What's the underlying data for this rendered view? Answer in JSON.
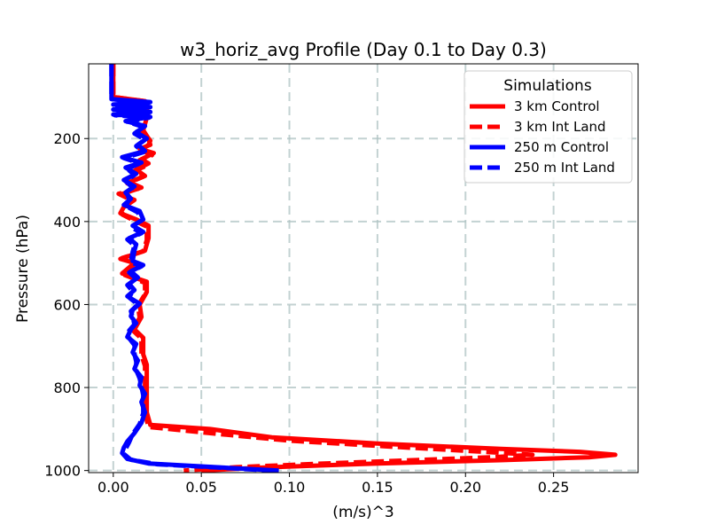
{
  "chart_data": {
    "type": "line",
    "title": "w3_horiz_avg Profile (Day 0.1 to Day 0.3)",
    "xlabel": "(m/s)^3",
    "ylabel": "Pressure (hPa)",
    "xlim": [
      -0.014,
      0.298
    ],
    "ylim": [
      1005,
      20
    ],
    "y_inverted": true,
    "xticks": [
      0.0,
      0.05,
      0.1,
      0.15,
      0.2,
      0.25
    ],
    "xtick_labels": [
      "0.00",
      "0.05",
      "0.10",
      "0.15",
      "0.20",
      "0.25"
    ],
    "yticks": [
      200,
      400,
      600,
      800,
      1000
    ],
    "ytick_labels": [
      "200",
      "400",
      "600",
      "800",
      "1000"
    ],
    "grid": true,
    "legend": {
      "title": "Simulations",
      "placement": "top-right",
      "entries": [
        "3 km Control",
        "3 km Int Land",
        "250 m Control",
        "250 m Int Land"
      ]
    },
    "series": [
      {
        "name": "3 km Control",
        "color": "#ff0000",
        "style": "solid",
        "points": [
          [
            0.0,
            20
          ],
          [
            0.0,
            100
          ],
          [
            0.018,
            110
          ],
          [
            0.019,
            150
          ],
          [
            0.017,
            180
          ],
          [
            0.02,
            200
          ],
          [
            0.021,
            215
          ],
          [
            0.015,
            225
          ],
          [
            0.023,
            235
          ],
          [
            0.016,
            250
          ],
          [
            0.02,
            260
          ],
          [
            0.013,
            275
          ],
          [
            0.018,
            290
          ],
          [
            0.009,
            305
          ],
          [
            0.016,
            318
          ],
          [
            0.004,
            335
          ],
          [
            0.012,
            348
          ],
          [
            0.006,
            365
          ],
          [
            0.004,
            380
          ],
          [
            0.013,
            395
          ],
          [
            0.02,
            410
          ],
          [
            0.02,
            440
          ],
          [
            0.018,
            470
          ],
          [
            0.004,
            490
          ],
          [
            0.012,
            500
          ],
          [
            0.005,
            525
          ],
          [
            0.019,
            545
          ],
          [
            0.019,
            570
          ],
          [
            0.015,
            600
          ],
          [
            0.016,
            630
          ],
          [
            0.012,
            660
          ],
          [
            0.017,
            680
          ],
          [
            0.017,
            720
          ],
          [
            0.019,
            745
          ],
          [
            0.019,
            790
          ],
          [
            0.019,
            830
          ],
          [
            0.019,
            860
          ],
          [
            0.021,
            890
          ],
          [
            0.055,
            900
          ],
          [
            0.09,
            920
          ],
          [
            0.15,
            935
          ],
          [
            0.22,
            948
          ],
          [
            0.265,
            955
          ],
          [
            0.285,
            962
          ],
          [
            0.27,
            968
          ],
          [
            0.22,
            975
          ],
          [
            0.15,
            983
          ],
          [
            0.09,
            992
          ],
          [
            0.05,
            1000
          ]
        ]
      },
      {
        "name": "3 km Int Land",
        "color": "#ff0000",
        "style": "dashed",
        "points": [
          [
            0.0,
            20
          ],
          [
            0.0,
            100
          ],
          [
            0.018,
            110
          ],
          [
            0.02,
            150
          ],
          [
            0.016,
            180
          ],
          [
            0.021,
            205
          ],
          [
            0.02,
            215
          ],
          [
            0.016,
            228
          ],
          [
            0.022,
            240
          ],
          [
            0.015,
            252
          ],
          [
            0.019,
            265
          ],
          [
            0.012,
            278
          ],
          [
            0.017,
            292
          ],
          [
            0.008,
            308
          ],
          [
            0.015,
            320
          ],
          [
            0.003,
            333
          ],
          [
            0.011,
            350
          ],
          [
            0.005,
            368
          ],
          [
            0.005,
            383
          ],
          [
            0.012,
            398
          ],
          [
            0.019,
            412
          ],
          [
            0.019,
            445
          ],
          [
            0.017,
            472
          ],
          [
            0.005,
            488
          ],
          [
            0.012,
            503
          ],
          [
            0.006,
            528
          ],
          [
            0.018,
            548
          ],
          [
            0.018,
            575
          ],
          [
            0.014,
            603
          ],
          [
            0.015,
            632
          ],
          [
            0.011,
            662
          ],
          [
            0.016,
            682
          ],
          [
            0.016,
            722
          ],
          [
            0.018,
            748
          ],
          [
            0.018,
            792
          ],
          [
            0.018,
            832
          ],
          [
            0.018,
            862
          ],
          [
            0.02,
            895
          ],
          [
            0.06,
            912
          ],
          [
            0.1,
            928
          ],
          [
            0.16,
            943
          ],
          [
            0.215,
            956
          ],
          [
            0.238,
            962
          ],
          [
            0.215,
            968
          ],
          [
            0.17,
            975
          ],
          [
            0.12,
            983
          ],
          [
            0.07,
            992
          ],
          [
            0.04,
            1000
          ]
        ]
      },
      {
        "name": "250 m Control",
        "color": "#0000ff",
        "style": "solid",
        "points": [
          [
            -0.001,
            20
          ],
          [
            -0.001,
            105
          ],
          [
            0.021,
            112
          ],
          [
            0.0,
            118
          ],
          [
            0.021,
            124
          ],
          [
            0.0,
            130
          ],
          [
            0.021,
            136
          ],
          [
            0.0,
            142
          ],
          [
            0.021,
            148
          ],
          [
            0.007,
            158
          ],
          [
            0.018,
            170
          ],
          [
            0.013,
            185
          ],
          [
            0.019,
            200
          ],
          [
            0.014,
            215
          ],
          [
            0.018,
            230
          ],
          [
            0.005,
            245
          ],
          [
            0.016,
            258
          ],
          [
            0.007,
            270
          ],
          [
            0.013,
            285
          ],
          [
            0.006,
            300
          ],
          [
            0.012,
            315
          ],
          [
            0.007,
            330
          ],
          [
            0.01,
            345
          ],
          [
            0.006,
            360
          ],
          [
            0.015,
            375
          ],
          [
            0.017,
            395
          ],
          [
            0.011,
            410
          ],
          [
            0.017,
            425
          ],
          [
            0.009,
            440
          ],
          [
            0.013,
            455
          ],
          [
            0.012,
            470
          ],
          [
            0.011,
            495
          ],
          [
            0.017,
            505
          ],
          [
            0.01,
            520
          ],
          [
            0.014,
            535
          ],
          [
            0.009,
            550
          ],
          [
            0.012,
            565
          ],
          [
            0.008,
            580
          ],
          [
            0.015,
            598
          ],
          [
            0.011,
            613
          ],
          [
            0.01,
            628
          ],
          [
            0.013,
            645
          ],
          [
            0.01,
            660
          ],
          [
            0.008,
            678
          ],
          [
            0.013,
            695
          ],
          [
            0.011,
            715
          ],
          [
            0.014,
            735
          ],
          [
            0.012,
            755
          ],
          [
            0.016,
            775
          ],
          [
            0.015,
            795
          ],
          [
            0.018,
            815
          ],
          [
            0.016,
            835
          ],
          [
            0.018,
            860
          ],
          [
            0.016,
            885
          ],
          [
            0.012,
            910
          ],
          [
            0.008,
            930
          ],
          [
            0.006,
            945
          ],
          [
            0.005,
            958
          ],
          [
            0.008,
            972
          ],
          [
            0.02,
            983
          ],
          [
            0.05,
            990
          ],
          [
            0.094,
            1000
          ]
        ]
      },
      {
        "name": "250 m Int Land",
        "color": "#0000ff",
        "style": "dashed",
        "points": [
          [
            -0.001,
            20
          ],
          [
            -0.001,
            105
          ],
          [
            0.02,
            114
          ],
          [
            0.001,
            120
          ],
          [
            0.02,
            126
          ],
          [
            0.001,
            132
          ],
          [
            0.02,
            138
          ],
          [
            0.001,
            144
          ],
          [
            0.02,
            150
          ],
          [
            0.008,
            160
          ],
          [
            0.017,
            172
          ],
          [
            0.012,
            188
          ],
          [
            0.018,
            203
          ],
          [
            0.013,
            218
          ],
          [
            0.017,
            233
          ],
          [
            0.006,
            247
          ],
          [
            0.015,
            260
          ],
          [
            0.008,
            273
          ],
          [
            0.012,
            288
          ],
          [
            0.007,
            303
          ],
          [
            0.011,
            318
          ],
          [
            0.008,
            333
          ],
          [
            0.009,
            348
          ],
          [
            0.007,
            362
          ],
          [
            0.014,
            378
          ],
          [
            0.016,
            398
          ],
          [
            0.01,
            413
          ],
          [
            0.016,
            428
          ],
          [
            0.008,
            443
          ],
          [
            0.012,
            458
          ],
          [
            0.011,
            473
          ],
          [
            0.01,
            498
          ],
          [
            0.016,
            508
          ],
          [
            0.009,
            523
          ],
          [
            0.013,
            538
          ],
          [
            0.008,
            553
          ],
          [
            0.011,
            568
          ],
          [
            0.009,
            583
          ],
          [
            0.014,
            600
          ],
          [
            0.01,
            616
          ],
          [
            0.011,
            631
          ],
          [
            0.012,
            648
          ],
          [
            0.009,
            663
          ],
          [
            0.009,
            681
          ],
          [
            0.012,
            698
          ],
          [
            0.012,
            718
          ],
          [
            0.013,
            738
          ],
          [
            0.013,
            758
          ],
          [
            0.015,
            778
          ],
          [
            0.016,
            798
          ],
          [
            0.017,
            818
          ],
          [
            0.017,
            838
          ],
          [
            0.017,
            862
          ],
          [
            0.015,
            888
          ],
          [
            0.011,
            912
          ],
          [
            0.009,
            932
          ],
          [
            0.007,
            948
          ],
          [
            0.006,
            960
          ],
          [
            0.01,
            974
          ],
          [
            0.025,
            985
          ],
          [
            0.06,
            993
          ],
          [
            0.09,
            1000
          ]
        ]
      }
    ]
  }
}
